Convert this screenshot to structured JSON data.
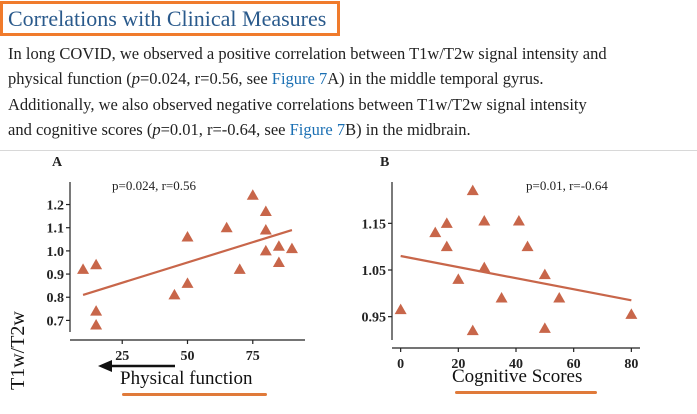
{
  "section": {
    "heading": "Correlations with Clinical Measures",
    "paragraph": {
      "line1": "In long COVID, we observed a positive correlation between T1w/T2w signal intensity and",
      "line2_a": "physical function (",
      "line2_p": "p",
      "line2_b": "=0.024, r=0.56, see ",
      "line2_link": "Figure 7",
      "line2_c": "A) in the middle temporal gyrus.",
      "line3": "Additionally, we also observed negative correlations between T1w/T2w signal intensity",
      "line4_a": "and cognitive scores (",
      "line4_p": "p",
      "line4_b": "=0.01, r=-0.64, see ",
      "line4_link": "Figure 7",
      "line4_c": "B) in the midbrain."
    }
  },
  "colors": {
    "accent": "#c8664a",
    "heading_box": "#f07b2c",
    "link": "#1a6fb3"
  },
  "chart_data": [
    {
      "type": "scatter",
      "panel_label": "A",
      "annotation": "p=0.024, r=0.56",
      "ylabel": "T1w/T2w",
      "xlabel": "Physical function",
      "xlim": [
        5,
        95
      ],
      "ylim": [
        0.65,
        1.28
      ],
      "xticks": [
        25,
        50,
        75
      ],
      "yticks": [
        0.7,
        0.8,
        0.9,
        1.0,
        1.1,
        1.2
      ],
      "ytick_labels": [
        "0.7",
        "0.8",
        "0.9",
        "1.0",
        "1.1",
        "1.2"
      ],
      "points": [
        {
          "x": 10,
          "y": 0.92
        },
        {
          "x": 15,
          "y": 0.94
        },
        {
          "x": 15,
          "y": 0.74
        },
        {
          "x": 15,
          "y": 0.68
        },
        {
          "x": 45,
          "y": 0.81
        },
        {
          "x": 50,
          "y": 0.86
        },
        {
          "x": 50,
          "y": 1.06
        },
        {
          "x": 65,
          "y": 1.1
        },
        {
          "x": 70,
          "y": 0.92
        },
        {
          "x": 75,
          "y": 1.24
        },
        {
          "x": 80,
          "y": 1.17
        },
        {
          "x": 80,
          "y": 1.09
        },
        {
          "x": 80,
          "y": 1.0
        },
        {
          "x": 85,
          "y": 1.02
        },
        {
          "x": 85,
          "y": 0.95
        },
        {
          "x": 90,
          "y": 1.01
        }
      ],
      "fit": [
        {
          "x": 10,
          "y": 0.81
        },
        {
          "x": 90,
          "y": 1.09
        }
      ],
      "arrow": "points toward lower physical function"
    },
    {
      "type": "scatter",
      "panel_label": "B",
      "annotation": "p=0.01, r=-0.64",
      "ylabel": "",
      "xlabel": "Cognitive Scores",
      "xlim": [
        -3,
        83
      ],
      "ylim": [
        0.9,
        1.23
      ],
      "xticks": [
        0,
        20,
        40,
        60,
        80
      ],
      "yticks": [
        0.95,
        1.05,
        1.15
      ],
      "ytick_labels": [
        "0.95",
        "1.05",
        "1.15"
      ],
      "points": [
        {
          "x": 0,
          "y": 0.965
        },
        {
          "x": 12,
          "y": 1.13
        },
        {
          "x": 16,
          "y": 1.15
        },
        {
          "x": 16,
          "y": 1.1
        },
        {
          "x": 20,
          "y": 1.03
        },
        {
          "x": 25,
          "y": 1.22
        },
        {
          "x": 25,
          "y": 0.92
        },
        {
          "x": 29,
          "y": 1.155
        },
        {
          "x": 29,
          "y": 1.055
        },
        {
          "x": 35,
          "y": 0.99
        },
        {
          "x": 41,
          "y": 1.155
        },
        {
          "x": 44,
          "y": 1.1
        },
        {
          "x": 50,
          "y": 1.04
        },
        {
          "x": 50,
          "y": 0.925
        },
        {
          "x": 55,
          "y": 0.99
        },
        {
          "x": 80,
          "y": 0.955
        }
      ],
      "fit": [
        {
          "x": 0,
          "y": 1.08
        },
        {
          "x": 80,
          "y": 0.985
        }
      ]
    }
  ]
}
